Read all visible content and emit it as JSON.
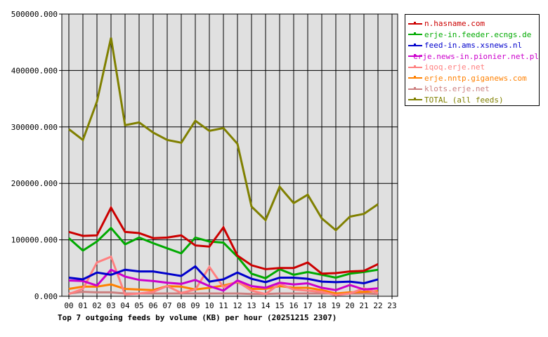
{
  "chart_data": {
    "type": "line",
    "title": "Top 7 outgoing feeds by volume (KB) per hour (20251215 2307)",
    "xlabel": "",
    "ylabel": "",
    "ylim": [
      0,
      500000
    ],
    "yticks": [
      "0.000",
      "100000.000",
      "200000.000",
      "300000.000",
      "400000.000",
      "500000.000"
    ],
    "categories": [
      "00",
      "01",
      "02",
      "03",
      "04",
      "05",
      "06",
      "07",
      "08",
      "09",
      "10",
      "11",
      "12",
      "13",
      "14",
      "15",
      "16",
      "17",
      "18",
      "19",
      "20",
      "21",
      "22",
      "23"
    ],
    "grid": true,
    "legend_position": "right",
    "series": [
      {
        "name": "n.hasname.com",
        "color": "#cc0000",
        "values": [
          114000,
          107000,
          108000,
          157000,
          114000,
          112000,
          103000,
          104000,
          108000,
          90000,
          88000,
          122000,
          72000,
          55000,
          48000,
          50000,
          50000,
          60000,
          40000,
          41000,
          44000,
          45000,
          57000
        ]
      },
      {
        "name": "erje-in.feeder.ecngs.de",
        "color": "#00aa00",
        "values": [
          103000,
          81000,
          97000,
          121000,
          92000,
          104000,
          94000,
          85000,
          76000,
          104000,
          97000,
          95000,
          70000,
          40000,
          32000,
          48000,
          38000,
          43000,
          38000,
          33000,
          40000,
          43000,
          47000
        ]
      },
      {
        "name": "feed-in.ams.xsnews.nl",
        "color": "#0000cc",
        "values": [
          33000,
          30000,
          42000,
          38000,
          47000,
          44000,
          44000,
          40000,
          36000,
          53000,
          26000,
          30000,
          42000,
          31000,
          25000,
          33000,
          33000,
          31000,
          26000,
          25000,
          26000,
          23000,
          30000
        ]
      },
      {
        "name": "erje.news-in.pionier.net.pl",
        "color": "#cc00cc",
        "values": [
          28000,
          27000,
          19000,
          47000,
          35000,
          29000,
          27000,
          24000,
          22000,
          29000,
          18000,
          10000,
          28000,
          18000,
          15000,
          24000,
          21000,
          23000,
          15000,
          11000,
          20000,
          12000,
          14000
        ]
      },
      {
        "name": "iqoq.erje.net",
        "color": "#ff8080",
        "values": [
          4000,
          13000,
          60000,
          70000,
          3000,
          5000,
          8000,
          18000,
          6000,
          12000,
          52000,
          16000,
          26000,
          10000,
          4000,
          22000,
          12000,
          10000,
          8000,
          2000,
          5000,
          14000,
          6000
        ]
      },
      {
        "name": "erje.nntp.giganews.com",
        "color": "#ff8000",
        "values": [
          13000,
          17000,
          17000,
          21000,
          13000,
          12000,
          11000,
          18000,
          17000,
          12000,
          15000,
          19000,
          25000,
          13000,
          13000,
          18000,
          15000,
          15000,
          11000,
          5000,
          7000,
          8000,
          9000
        ]
      },
      {
        "name": "klots.erje.net",
        "color": "#cc8080",
        "values": [
          5000,
          8000,
          7000,
          7000,
          5000,
          5000,
          5000,
          5000,
          5000,
          5000,
          5000,
          5000,
          5000,
          4000,
          4000,
          5000,
          5000,
          5000,
          5000,
          5000,
          5000,
          5000,
          4000
        ]
      },
      {
        "name": "TOTAL (all feeds)",
        "color": "#808000",
        "values": [
          296000,
          277000,
          345000,
          458000,
          303000,
          308000,
          290000,
          277000,
          272000,
          311000,
          293000,
          298000,
          270000,
          159000,
          135000,
          194000,
          165000,
          180000,
          138000,
          117000,
          141000,
          146000,
          163000
        ]
      }
    ]
  }
}
